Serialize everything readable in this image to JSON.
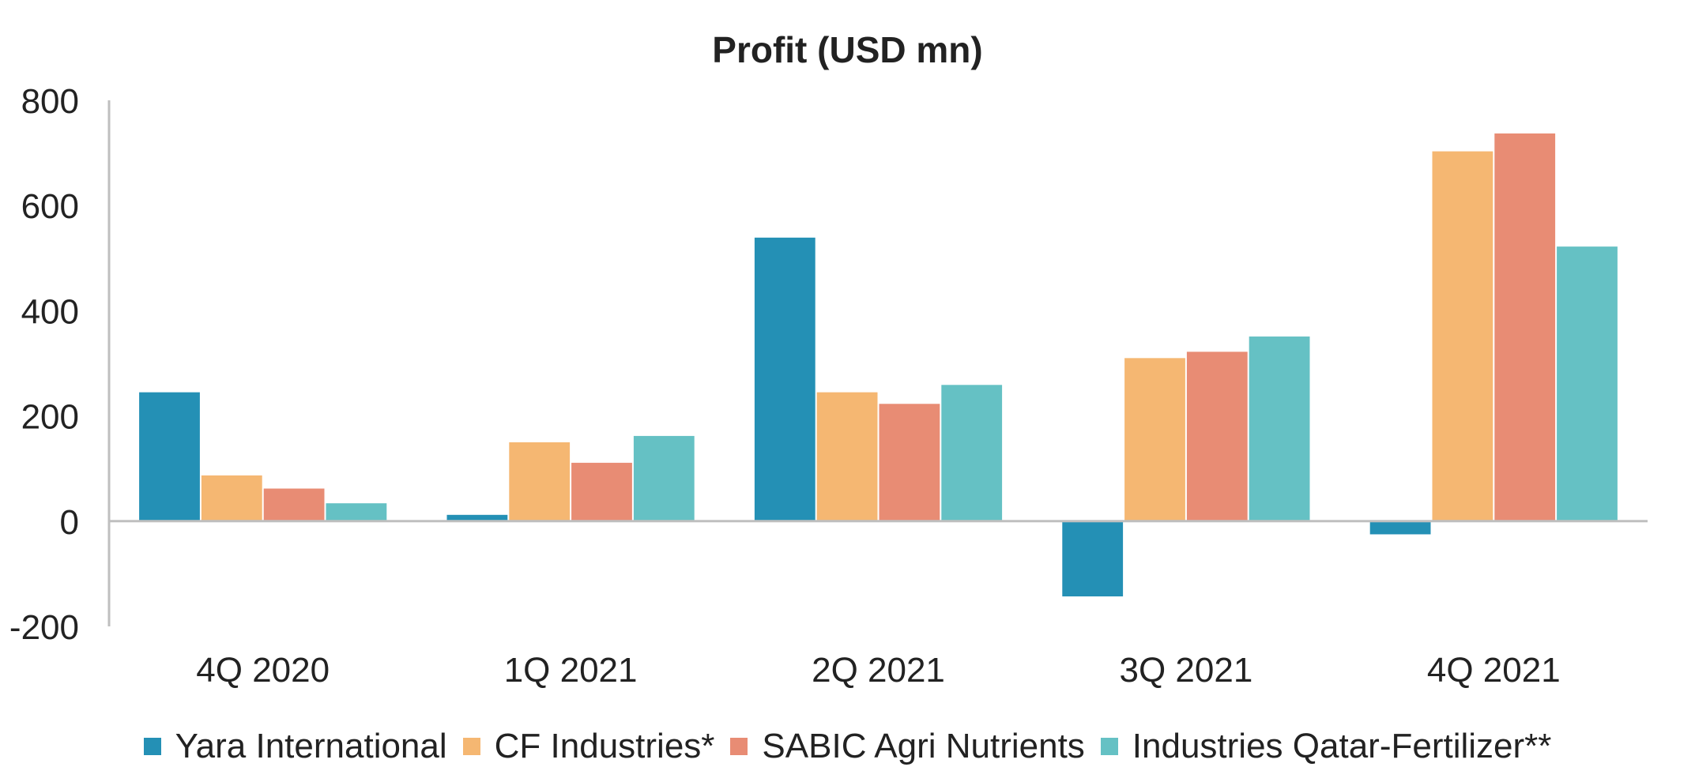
{
  "chart_data": {
    "type": "bar",
    "title": "Profit (USD mn)",
    "xlabel": "",
    "ylabel": "",
    "categories": [
      "4Q 2020",
      "1Q 2021",
      "2Q 2021",
      "3Q 2021",
      "4Q 2021"
    ],
    "ylim": [
      -200,
      800
    ],
    "yticks": [
      "800",
      "600",
      "400",
      "200",
      "0",
      "-200"
    ],
    "legend_position": "bottom",
    "grid": false,
    "series": [
      {
        "name": "Yara International",
        "color": "#2490b5",
        "values": [
          245,
          12,
          539,
          -143,
          -25
        ]
      },
      {
        "name": "CF Industries*",
        "color": "#f5b772",
        "values": [
          87,
          150,
          245,
          310,
          703
        ]
      },
      {
        "name": "SABIC Agri Nutrients",
        "color": "#e88c74",
        "values": [
          62,
          111,
          223,
          322,
          737
        ]
      },
      {
        "name": "Industries Qatar-Fertilizer**",
        "color": "#65c1c4",
        "values": [
          34,
          162,
          259,
          351,
          522
        ]
      }
    ]
  }
}
